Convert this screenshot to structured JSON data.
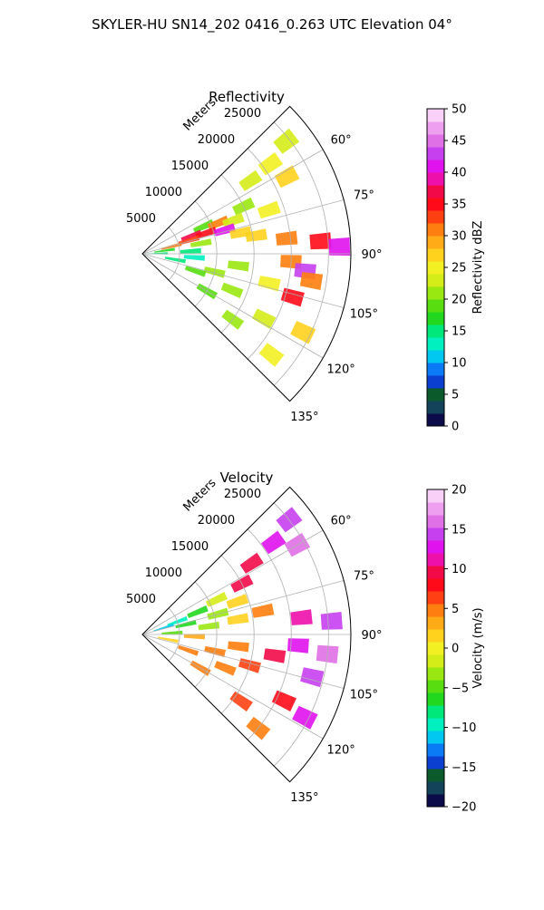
{
  "suptitle": "SKYLER-HU  SN14_202  0416_0.263 UTC Elevation 04°",
  "chart_data": [
    {
      "type": "heatmap",
      "subtype": "polar-sector",
      "title": "Reflectivity",
      "radial_label": "Meters",
      "radial_ticks": [
        5000,
        10000,
        15000,
        20000,
        25000
      ],
      "radial_tick_labels": [
        "5000",
        "10000",
        "15000",
        "20000",
        "25000"
      ],
      "rlim": [
        0,
        28000
      ],
      "azimuth_range_deg": [
        45,
        135
      ],
      "azimuth_ticks": [
        60,
        75,
        90,
        105,
        120,
        135
      ],
      "azimuth_tick_labels": [
        "60°",
        "75°",
        "90°",
        "105°",
        "120°",
        "135°"
      ],
      "grid": true,
      "colorbar": {
        "label": "Reflectivity dBZ",
        "range": [
          0,
          50
        ],
        "ticks": [
          0,
          5,
          10,
          15,
          20,
          25,
          30,
          35,
          40,
          45,
          50
        ],
        "tick_labels": [
          "0",
          "5",
          "10",
          "15",
          "20",
          "25",
          "30",
          "35",
          "40",
          "45",
          "50"
        ],
        "colors": [
          "#0b0b4a",
          "#12435b",
          "#0a5a2c",
          "#0a3fcf",
          "#0a7af5",
          "#00c8f0",
          "#00f0c0",
          "#00e87a",
          "#22d81e",
          "#58dd10",
          "#9ae812",
          "#d4ec18",
          "#f2ef22",
          "#ffd21e",
          "#ffab18",
          "#ff7e10",
          "#ff4012",
          "#ff0a18",
          "#f20a48",
          "#ee10aa",
          "#e012ee",
          "#c640f0",
          "#e070e6",
          "#ee9ff0",
          "#f8d0f8"
        ]
      },
      "cells": [
        {
          "az": 52,
          "r": 24500,
          "v": 22
        },
        {
          "az": 55,
          "r": 21000,
          "v": 24
        },
        {
          "az": 56,
          "r": 17500,
          "v": 22
        },
        {
          "az": 62,
          "r": 22000,
          "v": 26
        },
        {
          "az": 65,
          "r": 15000,
          "v": 20
        },
        {
          "az": 66,
          "r": 9000,
          "v": 18
        },
        {
          "az": 68,
          "r": 11000,
          "v": 30
        },
        {
          "az": 70,
          "r": 7000,
          "v": 37
        },
        {
          "az": 70,
          "r": 13000,
          "v": 22
        },
        {
          "az": 71,
          "r": 18000,
          "v": 24
        },
        {
          "az": 72,
          "r": 9000,
          "v": 35
        },
        {
          "az": 74,
          "r": 6500,
          "v": 33
        },
        {
          "az": 74,
          "r": 11500,
          "v": 40
        },
        {
          "az": 76,
          "r": 4000,
          "v": 31
        },
        {
          "az": 78,
          "r": 13500,
          "v": 27
        },
        {
          "az": 80,
          "r": 8000,
          "v": 20
        },
        {
          "az": 81,
          "r": 15500,
          "v": 26
        },
        {
          "az": 82,
          "r": 3000,
          "v": 17
        },
        {
          "az": 84,
          "r": 19500,
          "v": 30
        },
        {
          "az": 86,
          "r": 24000,
          "v": 35
        },
        {
          "az": 87,
          "r": 6500,
          "v": 15
        },
        {
          "az": 88,
          "r": 26500,
          "v": 41
        },
        {
          "az": 89,
          "r": 2000,
          "v": 14
        },
        {
          "az": 93,
          "r": 20000,
          "v": 30
        },
        {
          "az": 94,
          "r": 7000,
          "v": 12
        },
        {
          "az": 96,
          "r": 22000,
          "v": 42
        },
        {
          "az": 97,
          "r": 13000,
          "v": 20
        },
        {
          "az": 99,
          "r": 23000,
          "v": 31
        },
        {
          "az": 100,
          "r": 4500,
          "v": 15
        },
        {
          "az": 103,
          "r": 17500,
          "v": 24
        },
        {
          "az": 104,
          "r": 10000,
          "v": 20
        },
        {
          "az": 106,
          "r": 21000,
          "v": 34
        },
        {
          "az": 108,
          "r": 7500,
          "v": 19
        },
        {
          "az": 112,
          "r": 13000,
          "v": 21
        },
        {
          "az": 116,
          "r": 24000,
          "v": 27
        },
        {
          "az": 118,
          "r": 18500,
          "v": 23
        },
        {
          "az": 120,
          "r": 10000,
          "v": 19
        },
        {
          "az": 126,
          "r": 15000,
          "v": 21
        },
        {
          "az": 128,
          "r": 22000,
          "v": 24
        }
      ]
    },
    {
      "type": "heatmap",
      "subtype": "polar-sector",
      "title": "Velocity",
      "radial_label": "Meters",
      "radial_ticks": [
        5000,
        10000,
        15000,
        20000,
        25000
      ],
      "radial_tick_labels": [
        "5000",
        "10000",
        "15000",
        "20000",
        "25000"
      ],
      "rlim": [
        0,
        28000
      ],
      "azimuth_range_deg": [
        45,
        135
      ],
      "azimuth_ticks": [
        60,
        75,
        90,
        105,
        120,
        135
      ],
      "azimuth_tick_labels": [
        "60°",
        "75°",
        "90°",
        "105°",
        "120°",
        "135°"
      ],
      "grid": true,
      "colorbar": {
        "label": "Velocity (m/s)",
        "range": [
          -20,
          20
        ],
        "ticks": [
          -20,
          -15,
          -10,
          -5,
          0,
          5,
          10,
          15,
          20
        ],
        "tick_labels": [
          "−20",
          "−15",
          "−10",
          "−5",
          "0",
          "5",
          "10",
          "15",
          "20"
        ],
        "colors": [
          "#0b0b4a",
          "#12435b",
          "#0a5a2c",
          "#0a3fcf",
          "#0a7af5",
          "#00c8f0",
          "#00f0c0",
          "#00e87a",
          "#22d81e",
          "#58dd10",
          "#9ae812",
          "#d4ec18",
          "#f2ef22",
          "#ffd21e",
          "#ffab18",
          "#ff7e10",
          "#ff4012",
          "#ff0a18",
          "#f20a48",
          "#ee10aa",
          "#e012ee",
          "#c640f0",
          "#e070e6",
          "#ee9ff0",
          "#f8d0f8"
        ]
      },
      "cells": [
        {
          "az": 52,
          "r": 25000,
          "v": 14
        },
        {
          "az": 55,
          "r": 21500,
          "v": 13
        },
        {
          "az": 57,
          "r": 17500,
          "v": 10
        },
        {
          "az": 60,
          "r": 24000,
          "v": 16
        },
        {
          "az": 63,
          "r": 15000,
          "v": 9
        },
        {
          "az": 65,
          "r": 11000,
          "v": -2
        },
        {
          "az": 68,
          "r": 8000,
          "v": -6
        },
        {
          "az": 70,
          "r": 5000,
          "v": -9
        },
        {
          "az": 71,
          "r": 13500,
          "v": 2
        },
        {
          "az": 73,
          "r": 3000,
          "v": -11
        },
        {
          "az": 75,
          "r": 10500,
          "v": -4
        },
        {
          "az": 77,
          "r": 6000,
          "v": -7
        },
        {
          "az": 79,
          "r": 16500,
          "v": 5
        },
        {
          "az": 81,
          "r": 13000,
          "v": 1
        },
        {
          "az": 83,
          "r": 9000,
          "v": -3
        },
        {
          "az": 84,
          "r": 21500,
          "v": 11
        },
        {
          "az": 86,
          "r": 25500,
          "v": 14
        },
        {
          "az": 87,
          "r": 4000,
          "v": -5
        },
        {
          "az": 92,
          "r": 7000,
          "v": 3
        },
        {
          "az": 94,
          "r": 21000,
          "v": 12
        },
        {
          "az": 96,
          "r": 25000,
          "v": 16
        },
        {
          "az": 97,
          "r": 13000,
          "v": 4
        },
        {
          "az": 99,
          "r": 18000,
          "v": 10
        },
        {
          "az": 101,
          "r": 3500,
          "v": 2
        },
        {
          "az": 103,
          "r": 10000,
          "v": 5
        },
        {
          "az": 104,
          "r": 23500,
          "v": 14
        },
        {
          "az": 106,
          "r": 15000,
          "v": 6
        },
        {
          "az": 109,
          "r": 6500,
          "v": 4
        },
        {
          "az": 112,
          "r": 12000,
          "v": 5
        },
        {
          "az": 115,
          "r": 21000,
          "v": 8
        },
        {
          "az": 117,
          "r": 24500,
          "v": 13
        },
        {
          "az": 120,
          "r": 9000,
          "v": 4
        },
        {
          "az": 124,
          "r": 16000,
          "v": 6
        },
        {
          "az": 129,
          "r": 20000,
          "v": 5
        }
      ]
    }
  ]
}
